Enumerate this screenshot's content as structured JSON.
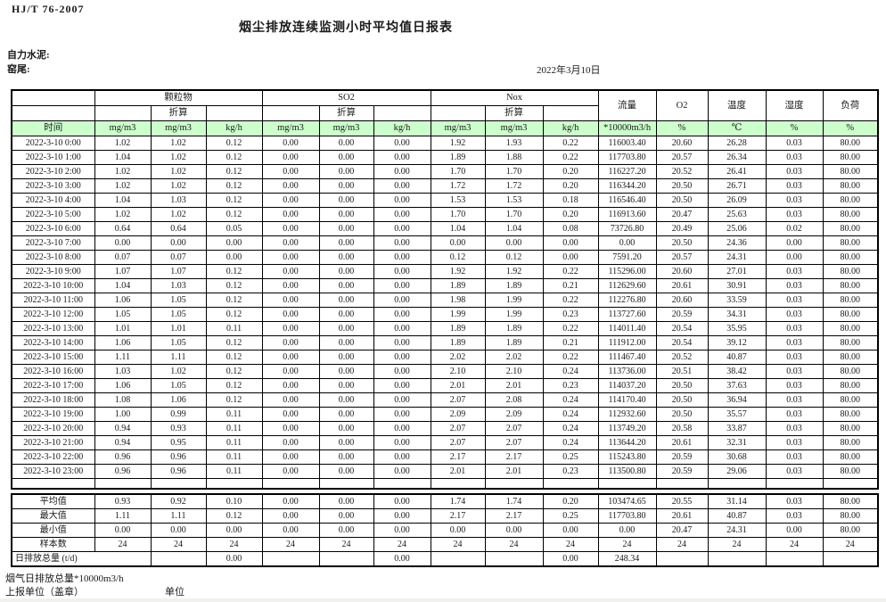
{
  "header": {
    "standard_code": "HJ/T 76-2007",
    "title": "烟尘排放连续监测小时平均值日报表",
    "company_label": "自力水泥:",
    "station_label": "窑尾:",
    "report_date": "2022年3月10日"
  },
  "table": {
    "header_green": "#ccffcc",
    "time_label": "时间",
    "zhesuan_label": "折算",
    "groups": [
      "颗粒物",
      "SO2",
      "Nox"
    ],
    "scalar_columns": [
      "流量",
      "O2",
      "温度",
      "湿度",
      "负荷"
    ],
    "units": [
      "mg/m3",
      "mg/m3",
      "kg/h",
      "mg/m3",
      "mg/m3",
      "kg/h",
      "mg/m3",
      "mg/m3",
      "kg/h",
      "*10000m3/h",
      "%",
      "℃",
      "%",
      "%"
    ],
    "rows": [
      [
        "2022-3-10 0:00",
        "1.02",
        "1.02",
        "0.12",
        "0.00",
        "0.00",
        "0.00",
        "1.92",
        "1.93",
        "0.22",
        "116003.40",
        "20.60",
        "26.28",
        "0.03",
        "80.00"
      ],
      [
        "2022-3-10 1:00",
        "1.04",
        "1.02",
        "0.12",
        "0.00",
        "0.00",
        "0.00",
        "1.89",
        "1.88",
        "0.22",
        "117703.80",
        "20.57",
        "26.34",
        "0.03",
        "80.00"
      ],
      [
        "2022-3-10 2:00",
        "1.02",
        "1.02",
        "0.12",
        "0.00",
        "0.00",
        "0.00",
        "1.70",
        "1.70",
        "0.20",
        "116227.20",
        "20.52",
        "26.41",
        "0.03",
        "80.00"
      ],
      [
        "2022-3-10 3:00",
        "1.02",
        "1.02",
        "0.12",
        "0.00",
        "0.00",
        "0.00",
        "1.72",
        "1.72",
        "0.20",
        "116344.20",
        "20.50",
        "26.71",
        "0.03",
        "80.00"
      ],
      [
        "2022-3-10 4:00",
        "1.04",
        "1.03",
        "0.12",
        "0.00",
        "0.00",
        "0.00",
        "1.53",
        "1.53",
        "0.18",
        "116546.40",
        "20.50",
        "26.09",
        "0.03",
        "80.00"
      ],
      [
        "2022-3-10 5:00",
        "1.02",
        "1.02",
        "0.12",
        "0.00",
        "0.00",
        "0.00",
        "1.70",
        "1.70",
        "0.20",
        "116913.60",
        "20.47",
        "25.63",
        "0.03",
        "80.00"
      ],
      [
        "2022-3-10 6:00",
        "0.64",
        "0.64",
        "0.05",
        "0.00",
        "0.00",
        "0.00",
        "1.04",
        "1.04",
        "0.08",
        "73726.80",
        "20.49",
        "25.06",
        "0.02",
        "80.00"
      ],
      [
        "2022-3-10 7:00",
        "0.00",
        "0.00",
        "0.00",
        "0.00",
        "0.00",
        "0.00",
        "0.00",
        "0.00",
        "0.00",
        "0.00",
        "20.50",
        "24.36",
        "0.00",
        "80.00"
      ],
      [
        "2022-3-10 8:00",
        "0.07",
        "0.07",
        "0.00",
        "0.00",
        "0.00",
        "0.00",
        "0.12",
        "0.12",
        "0.00",
        "7591.20",
        "20.57",
        "24.31",
        "0.00",
        "80.00"
      ],
      [
        "2022-3-10 9:00",
        "1.07",
        "1.07",
        "0.12",
        "0.00",
        "0.00",
        "0.00",
        "1.92",
        "1.92",
        "0.22",
        "115296.00",
        "20.60",
        "27.01",
        "0.03",
        "80.00"
      ],
      [
        "2022-3-10 10:00",
        "1.04",
        "1.03",
        "0.12",
        "0.00",
        "0.00",
        "0.00",
        "1.89",
        "1.89",
        "0.21",
        "112629.60",
        "20.61",
        "30.91",
        "0.03",
        "80.00"
      ],
      [
        "2022-3-10 11:00",
        "1.06",
        "1.05",
        "0.12",
        "0.00",
        "0.00",
        "0.00",
        "1.98",
        "1.99",
        "0.22",
        "112276.80",
        "20.60",
        "33.59",
        "0.03",
        "80.00"
      ],
      [
        "2022-3-10 12:00",
        "1.05",
        "1.05",
        "0.12",
        "0.00",
        "0.00",
        "0.00",
        "1.99",
        "1.99",
        "0.23",
        "113727.60",
        "20.59",
        "34.31",
        "0.03",
        "80.00"
      ],
      [
        "2022-3-10 13:00",
        "1.01",
        "1.01",
        "0.11",
        "0.00",
        "0.00",
        "0.00",
        "1.89",
        "1.89",
        "0.22",
        "114011.40",
        "20.54",
        "35.95",
        "0.03",
        "80.00"
      ],
      [
        "2022-3-10 14:00",
        "1.06",
        "1.05",
        "0.12",
        "0.00",
        "0.00",
        "0.00",
        "1.89",
        "1.89",
        "0.21",
        "111912.00",
        "20.54",
        "39.12",
        "0.03",
        "80.00"
      ],
      [
        "2022-3-10 15:00",
        "1.11",
        "1.11",
        "0.12",
        "0.00",
        "0.00",
        "0.00",
        "2.02",
        "2.02",
        "0.22",
        "111467.40",
        "20.52",
        "40.87",
        "0.03",
        "80.00"
      ],
      [
        "2022-3-10 16:00",
        "1.03",
        "1.02",
        "0.12",
        "0.00",
        "0.00",
        "0.00",
        "2.10",
        "2.10",
        "0.24",
        "113736.00",
        "20.51",
        "38.42",
        "0.03",
        "80.00"
      ],
      [
        "2022-3-10 17:00",
        "1.06",
        "1.05",
        "0.12",
        "0.00",
        "0.00",
        "0.00",
        "2.01",
        "2.01",
        "0.23",
        "114037.20",
        "20.50",
        "37.63",
        "0.03",
        "80.00"
      ],
      [
        "2022-3-10 18:00",
        "1.08",
        "1.06",
        "0.12",
        "0.00",
        "0.00",
        "0.00",
        "2.07",
        "2.08",
        "0.24",
        "114170.40",
        "20.50",
        "36.94",
        "0.03",
        "80.00"
      ],
      [
        "2022-3-10 19:00",
        "1.00",
        "0.99",
        "0.11",
        "0.00",
        "0.00",
        "0.00",
        "2.09",
        "2.09",
        "0.24",
        "112932.60",
        "20.50",
        "35.57",
        "0.03",
        "80.00"
      ],
      [
        "2022-3-10 20:00",
        "0.94",
        "0.93",
        "0.11",
        "0.00",
        "0.00",
        "0.00",
        "2.07",
        "2.07",
        "0.24",
        "113749.20",
        "20.58",
        "33.87",
        "0.03",
        "80.00"
      ],
      [
        "2022-3-10 21:00",
        "0.94",
        "0.95",
        "0.11",
        "0.00",
        "0.00",
        "0.00",
        "2.07",
        "2.07",
        "0.24",
        "113644.20",
        "20.61",
        "32.31",
        "0.03",
        "80.00"
      ],
      [
        "2022-3-10 22:00",
        "0.96",
        "0.96",
        "0.11",
        "0.00",
        "0.00",
        "0.00",
        "2.17",
        "2.17",
        "0.25",
        "115243.80",
        "20.59",
        "30.68",
        "0.03",
        "80.00"
      ],
      [
        "2022-3-10 23:00",
        "0.96",
        "0.96",
        "0.11",
        "0.00",
        "0.00",
        "0.00",
        "2.01",
        "2.01",
        "0.23",
        "113500.80",
        "20.59",
        "29.06",
        "0.03",
        "80.00"
      ]
    ],
    "summary_rows": [
      [
        "平均值",
        "0.93",
        "0.92",
        "0.10",
        "0.00",
        "0.00",
        "0.00",
        "1.74",
        "1.74",
        "0.20",
        "103474.65",
        "20.55",
        "31.14",
        "0.03",
        "80.00"
      ],
      [
        "最大值",
        "1.11",
        "1.11",
        "0.12",
        "0.00",
        "0.00",
        "0.00",
        "2.17",
        "2.17",
        "0.25",
        "117703.80",
        "20.61",
        "40.87",
        "0.03",
        "80.00"
      ],
      [
        "最小值",
        "0.00",
        "0.00",
        "0.00",
        "0.00",
        "0.00",
        "0.00",
        "0.00",
        "0.00",
        "0.00",
        "0.00",
        "20.47",
        "24.31",
        "0.00",
        "80.00"
      ],
      [
        "样本数",
        "24",
        "24",
        "24",
        "24",
        "24",
        "24",
        "24",
        "24",
        "24",
        "24",
        "24",
        "24",
        "24",
        "24"
      ]
    ],
    "total_row": {
      "label": "日排放总量 (t/d)",
      "cells": [
        "",
        "0.00",
        "",
        "",
        "0.00",
        "",
        "",
        "0.00",
        "248.34",
        "",
        "",
        "",
        ""
      ]
    }
  },
  "footer": {
    "flue_gas_total_label": "烟气日排放总量*10000m3/h",
    "reporting_unit_label": "上报单位（盖章）",
    "unit_label": "单位"
  }
}
